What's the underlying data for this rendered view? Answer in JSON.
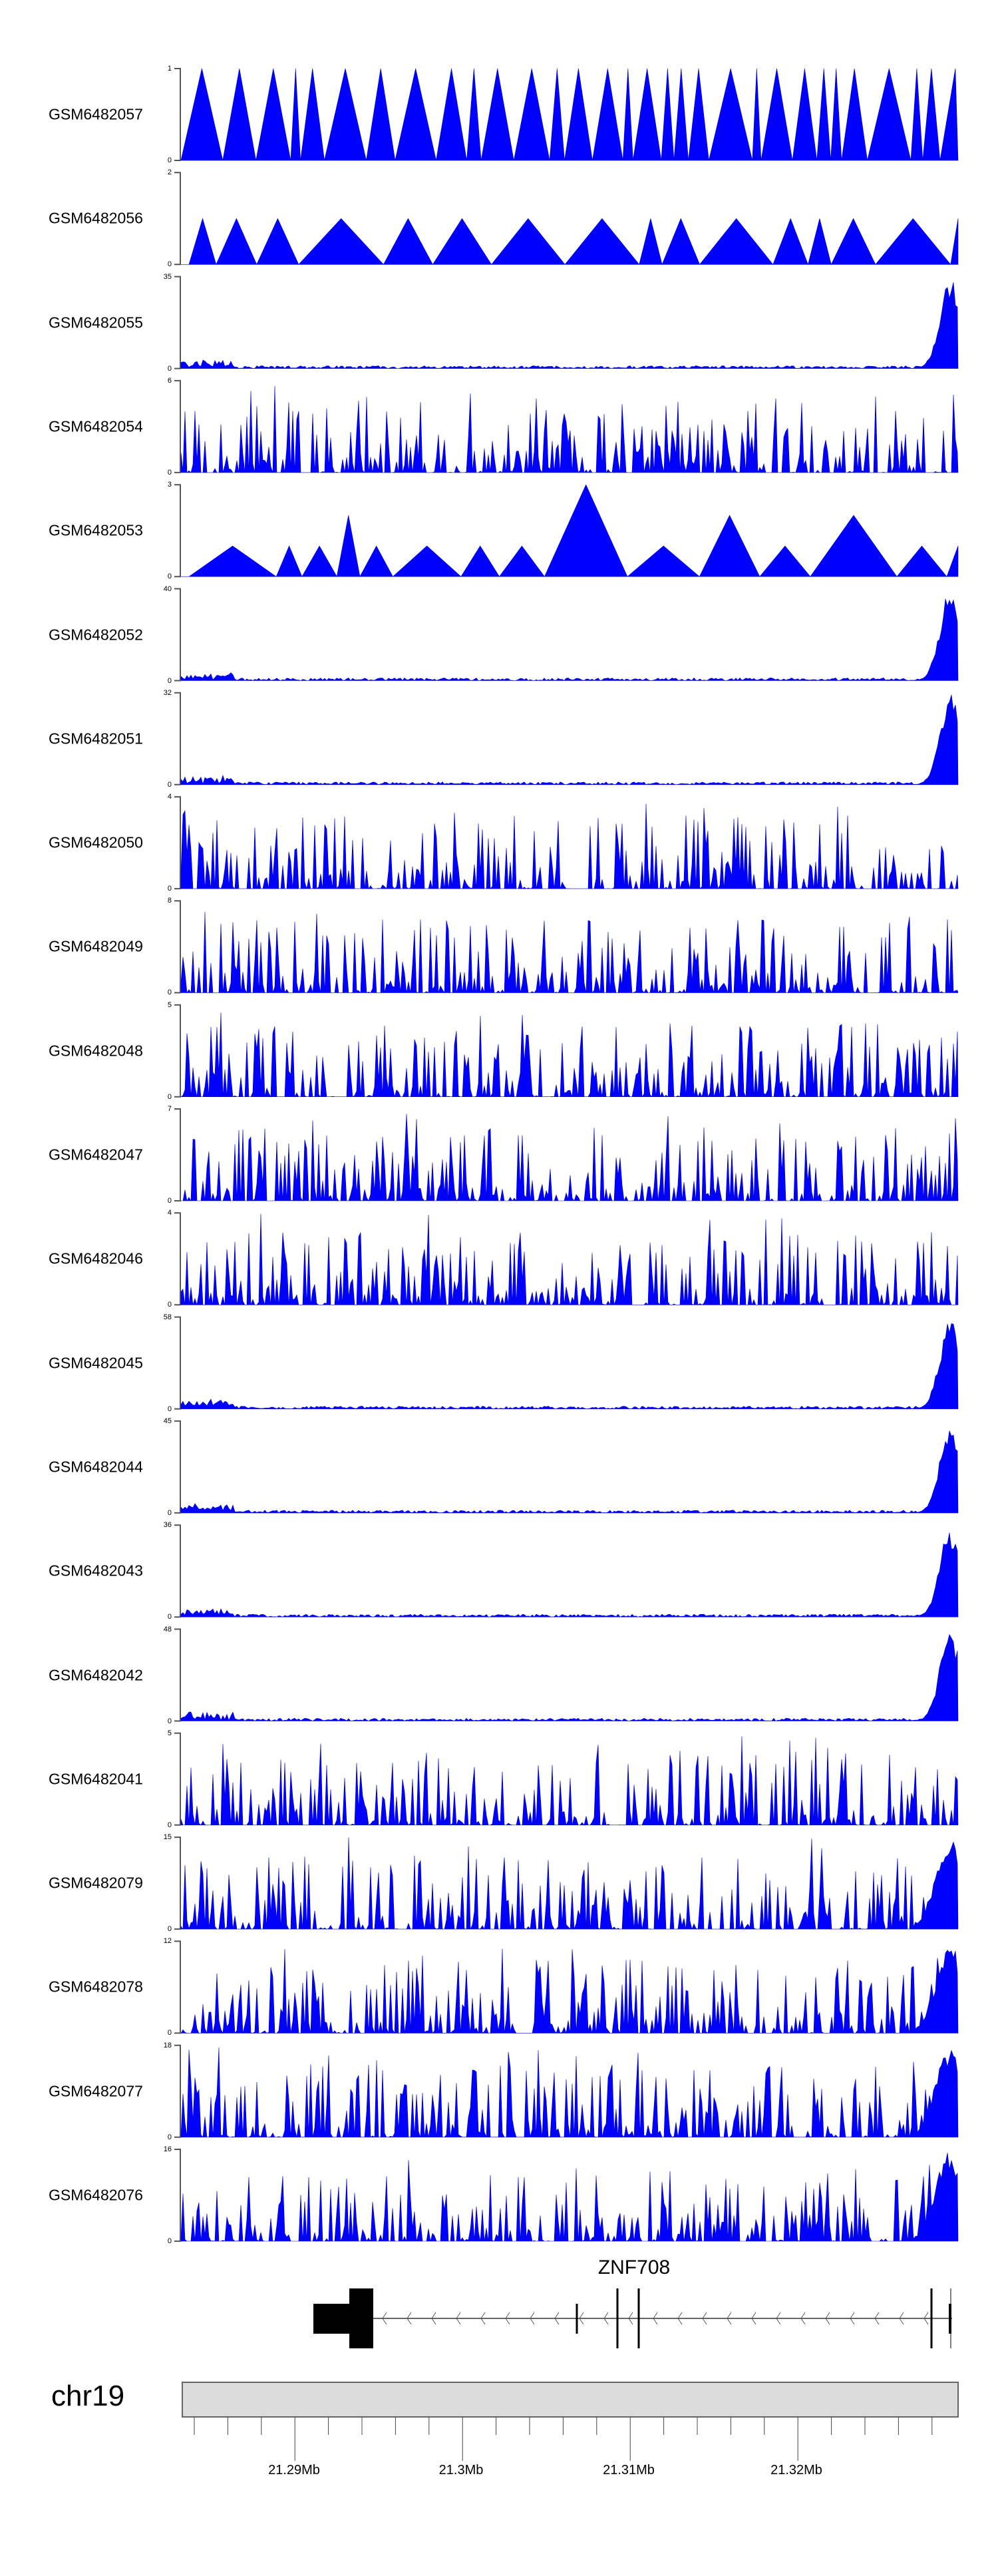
{
  "chart_data": {
    "type": "area",
    "title": "",
    "chromosome": "chr19",
    "xlabel": "",
    "xlim_mb": [
      21.2829,
      21.329
    ],
    "x_ticks": [
      "21.29Mb",
      "21.3Mb",
      "21.31Mb",
      "21.32Mb"
    ],
    "x_tick_values_mb": [
      21.29,
      21.3,
      21.31,
      21.32
    ],
    "minor_tick_step_kb": 2,
    "fill_color": "#0000FF",
    "series": [
      {
        "name": "GSM6482057",
        "ylim": [
          0,
          1
        ],
        "pattern": "sparse"
      },
      {
        "name": "GSM6482056",
        "ylim": [
          0,
          2
        ],
        "pattern": "sparse"
      },
      {
        "name": "GSM6482055",
        "ylim": [
          0,
          35
        ],
        "pattern": "end-peak"
      },
      {
        "name": "GSM6482054",
        "ylim": [
          0,
          6
        ],
        "pattern": "spiky"
      },
      {
        "name": "GSM6482053",
        "ylim": [
          0,
          3
        ],
        "pattern": "sparse"
      },
      {
        "name": "GSM6482052",
        "ylim": [
          0,
          40
        ],
        "pattern": "end-peak"
      },
      {
        "name": "GSM6482051",
        "ylim": [
          0,
          32
        ],
        "pattern": "end-peak"
      },
      {
        "name": "GSM6482050",
        "ylim": [
          0,
          4
        ],
        "pattern": "spiky"
      },
      {
        "name": "GSM6482049",
        "ylim": [
          0,
          8
        ],
        "pattern": "spiky"
      },
      {
        "name": "GSM6482048",
        "ylim": [
          0,
          5
        ],
        "pattern": "spiky"
      },
      {
        "name": "GSM6482047",
        "ylim": [
          0,
          7
        ],
        "pattern": "spiky"
      },
      {
        "name": "GSM6482046",
        "ylim": [
          0,
          4
        ],
        "pattern": "spiky"
      },
      {
        "name": "GSM6482045",
        "ylim": [
          0,
          58
        ],
        "pattern": "end-peak"
      },
      {
        "name": "GSM6482044",
        "ylim": [
          0,
          45
        ],
        "pattern": "end-peak"
      },
      {
        "name": "GSM6482043",
        "ylim": [
          0,
          36
        ],
        "pattern": "end-peak"
      },
      {
        "name": "GSM6482042",
        "ylim": [
          0,
          48
        ],
        "pattern": "end-peak"
      },
      {
        "name": "GSM6482041",
        "ylim": [
          0,
          5
        ],
        "pattern": "spiky"
      },
      {
        "name": "GSM6482079",
        "ylim": [
          0,
          15
        ],
        "pattern": "spiky-end"
      },
      {
        "name": "GSM6482078",
        "ylim": [
          0,
          12
        ],
        "pattern": "spiky-end"
      },
      {
        "name": "GSM6482077",
        "ylim": [
          0,
          18
        ],
        "pattern": "spiky-end"
      },
      {
        "name": "GSM6482076",
        "ylim": [
          0,
          16
        ],
        "pattern": "spiky-end"
      }
    ]
  },
  "gene": {
    "name": "ZNF708",
    "strand": "-"
  },
  "ideogram": {
    "label": "chr19"
  }
}
